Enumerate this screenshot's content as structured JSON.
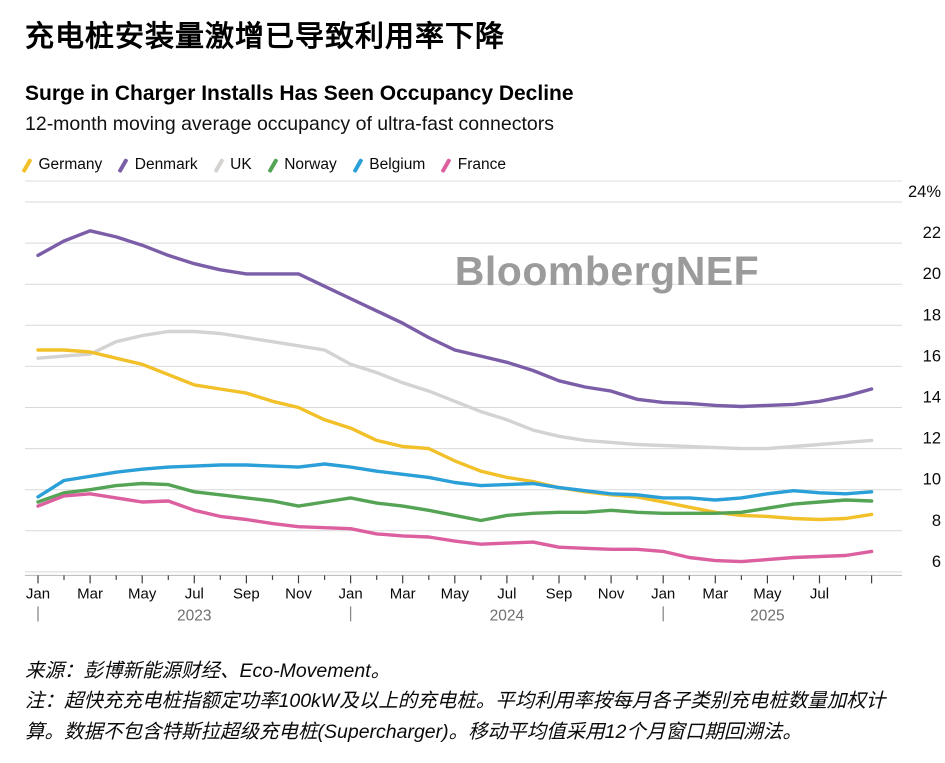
{
  "header": {
    "title_zh": "充电桩安装量激增已导致利用率下降",
    "title_en": "Surge in Charger Installs Has Seen Occupancy Decline",
    "subtitle": "12-month moving average occupancy of ultra-fast connectors"
  },
  "watermark": "BloombergNEF",
  "footer": {
    "source": "来源：彭博新能源财经、Eco-Movement。",
    "note": "注：超快充充电桩指额定功率100kW及以上的充电桩。平均利用率按每月各子类别充电桩数量加权计算。数据不包含特斯拉超级充电桩(Supercharger)。移动平均值采用12个月窗口期回溯法。"
  },
  "chart_data": {
    "type": "line",
    "unit": "%",
    "x_monthly_start": "2023-01",
    "x_monthly_end": "2025-09",
    "month_tick_labels": [
      "Jan",
      "Mar",
      "May",
      "Jul",
      "Sep",
      "Nov",
      "Jan",
      "Mar",
      "May",
      "Jul",
      "Sep",
      "Nov",
      "Jan",
      "Mar",
      "May",
      "Jul"
    ],
    "year_labels": [
      "2023",
      "2024",
      "2025"
    ],
    "ylim": [
      6,
      24
    ],
    "ytick_labels": [
      "24%",
      "22",
      "20",
      "18",
      "16",
      "14",
      "12",
      "10",
      "8",
      "6"
    ],
    "grid": "horizontal",
    "legend_position": "top",
    "series": [
      {
        "name": "Germany",
        "color": "#F2C029",
        "values": [
          16.8,
          16.8,
          16.7,
          16.4,
          16.1,
          15.6,
          15.1,
          14.9,
          14.7,
          14.3,
          14.0,
          13.4,
          13.0,
          12.4,
          12.1,
          12.0,
          11.4,
          10.9,
          10.6,
          10.4,
          10.1,
          9.9,
          9.75,
          9.65,
          9.4,
          9.15,
          8.9,
          8.75,
          8.7,
          8.6,
          8.55,
          8.6,
          8.8
        ]
      },
      {
        "name": "Denmark",
        "color": "#7B5EA7",
        "values": [
          21.4,
          22.1,
          22.6,
          22.3,
          21.9,
          21.4,
          21.0,
          20.7,
          20.5,
          20.5,
          20.5,
          19.9,
          19.3,
          18.7,
          18.1,
          17.4,
          16.8,
          16.5,
          16.2,
          15.8,
          15.3,
          15.0,
          14.8,
          14.4,
          14.25,
          14.2,
          14.1,
          14.05,
          14.1,
          14.15,
          14.3,
          14.55,
          14.9
        ]
      },
      {
        "name": "UK",
        "color": "#D5D3D1",
        "values": [
          16.4,
          16.5,
          16.6,
          17.2,
          17.5,
          17.7,
          17.7,
          17.6,
          17.4,
          17.2,
          17.0,
          16.8,
          16.1,
          15.7,
          15.2,
          14.8,
          14.3,
          13.8,
          13.4,
          12.9,
          12.6,
          12.4,
          12.3,
          12.2,
          12.15,
          12.1,
          12.05,
          12.0,
          12.0,
          12.1,
          12.2,
          12.3,
          12.4
        ]
      },
      {
        "name": "Norway",
        "color": "#55A355",
        "values": [
          9.4,
          9.85,
          10.0,
          10.2,
          10.3,
          10.25,
          9.9,
          9.75,
          9.6,
          9.45,
          9.2,
          9.4,
          9.6,
          9.35,
          9.2,
          9.0,
          8.75,
          8.5,
          8.75,
          8.85,
          8.9,
          8.9,
          9.0,
          8.9,
          8.85,
          8.85,
          8.85,
          8.9,
          9.1,
          9.3,
          9.4,
          9.5,
          9.45
        ]
      },
      {
        "name": "Belgium",
        "color": "#2B9FD8",
        "values": [
          9.65,
          10.45,
          10.65,
          10.85,
          11.0,
          11.1,
          11.15,
          11.2,
          11.2,
          11.15,
          11.1,
          11.25,
          11.1,
          10.9,
          10.75,
          10.6,
          10.35,
          10.2,
          10.25,
          10.3,
          10.1,
          9.95,
          9.8,
          9.75,
          9.6,
          9.6,
          9.5,
          9.6,
          9.8,
          9.95,
          9.85,
          9.8,
          9.9
        ]
      },
      {
        "name": "France",
        "color": "#DC5F9F",
        "values": [
          9.2,
          9.7,
          9.8,
          9.6,
          9.4,
          9.45,
          9.0,
          8.7,
          8.55,
          8.35,
          8.2,
          8.15,
          8.1,
          7.85,
          7.75,
          7.7,
          7.5,
          7.35,
          7.4,
          7.45,
          7.2,
          7.15,
          7.1,
          7.1,
          7.0,
          6.7,
          6.55,
          6.5,
          6.6,
          6.7,
          6.75,
          6.8,
          7.0
        ]
      }
    ]
  }
}
